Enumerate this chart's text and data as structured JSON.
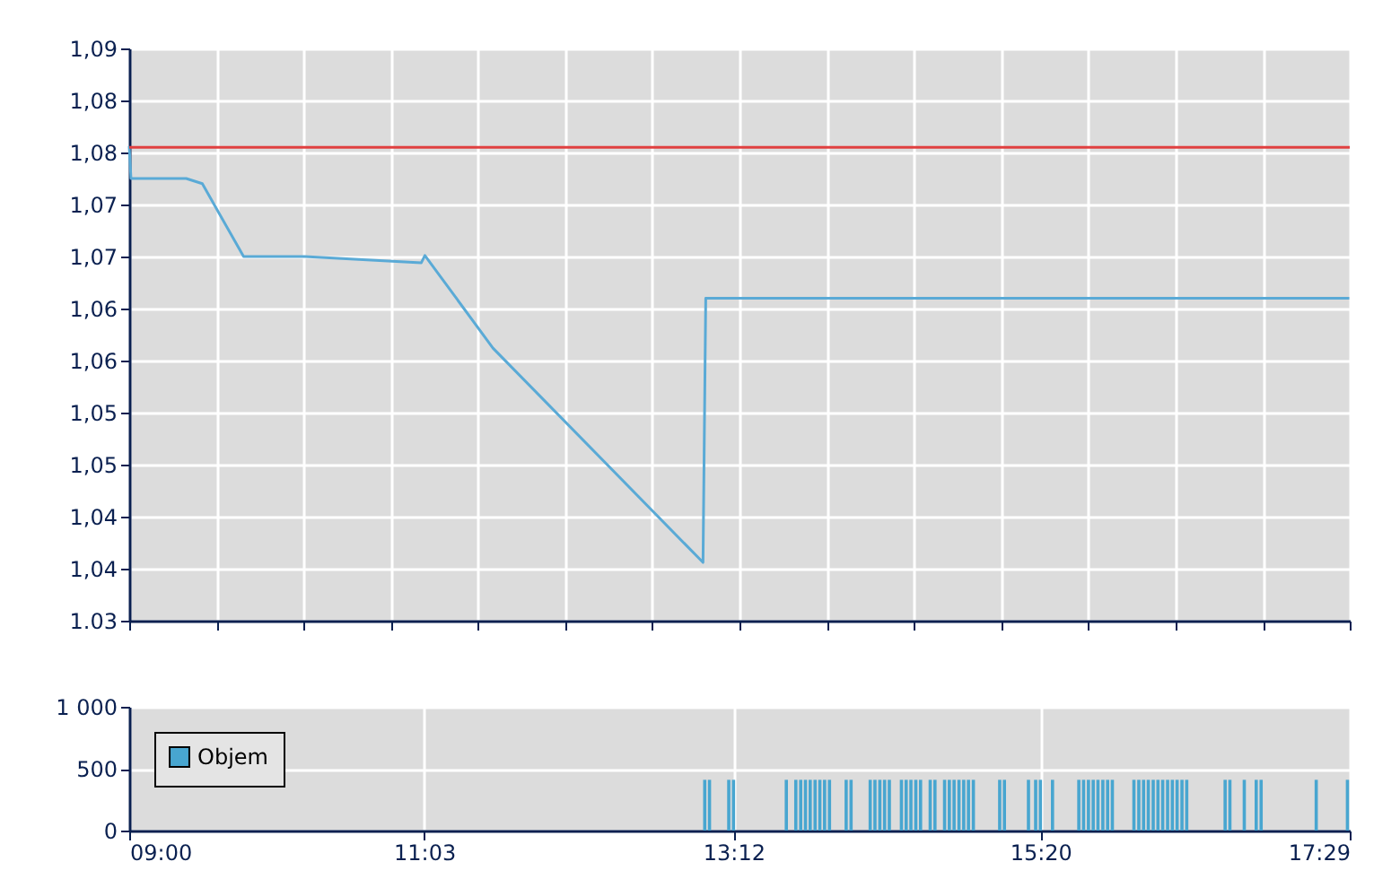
{
  "chart_data": [
    {
      "type": "line",
      "x": [
        9.0,
        9.012,
        9.396,
        9.508,
        9.795,
        10.219,
        11.03,
        11.055,
        11.528,
        12.988,
        13.007,
        17.48
      ],
      "series": [
        {
          "color": "#5aaad6",
          "values": [
            1.0756,
            1.0725,
            1.0725,
            1.072,
            1.065,
            1.065,
            1.0644,
            1.0651,
            1.0562,
            1.0356,
            1.061,
            1.061
          ]
        }
      ],
      "ylim": [
        1.03,
        1.085
      ],
      "yticks": [
        1.03,
        {
          "value": 1.035,
          "label": "1,04"
        },
        {
          "value": 1.04,
          "label": "1,04"
        },
        {
          "value": 1.045,
          "label": "1,05"
        },
        {
          "value": 1.05,
          "label": "1,05"
        },
        {
          "value": 1.055,
          "label": "1,06"
        },
        {
          "value": 1.06,
          "label": "1,06"
        },
        {
          "value": 1.065,
          "label": "1,07"
        },
        {
          "value": 1.07,
          "label": "1,07"
        },
        {
          "value": 1.075,
          "label": "1,08"
        },
        {
          "value": 1.08,
          "label": "1,08"
        },
        {
          "value": 1.085,
          "label": "1,09"
        }
      ],
      "xlim": [
        9.0,
        17.483
      ],
      "xticks": [
        {
          "value": 9.0,
          "label": null
        },
        {
          "value": 9.606,
          "label": null
        },
        {
          "value": 10.212,
          "label": null
        },
        {
          "value": 10.818,
          "label": null
        },
        {
          "value": 11.424,
          "label": null
        },
        {
          "value": 12.03,
          "label": null
        },
        {
          "value": 12.636,
          "label": null
        },
        {
          "value": 13.242,
          "label": null
        },
        {
          "value": 13.848,
          "label": null
        },
        {
          "value": 14.454,
          "label": null
        },
        {
          "value": 15.06,
          "label": null
        },
        {
          "value": 15.666,
          "label": null
        },
        {
          "value": 16.272,
          "label": null
        },
        {
          "value": 16.878,
          "label": null
        },
        {
          "value": 17.483,
          "label": null
        }
      ],
      "ref_lines": [
        {
          "axis": "y",
          "value": 1.0755,
          "color": "#e04040"
        }
      ],
      "tick_labels": "y",
      "grid": true,
      "marker": "none",
      "line_style": "solid"
    },
    {
      "type": "bar",
      "x": [
        13.0,
        13.033,
        13.167,
        13.2,
        13.567,
        13.633,
        13.667,
        13.7,
        13.733,
        13.767,
        13.8,
        13.833,
        13.867,
        13.983,
        14.017,
        14.15,
        14.183,
        14.217,
        14.25,
        14.283,
        14.367,
        14.4,
        14.433,
        14.467,
        14.5,
        14.567,
        14.6,
        14.667,
        14.7,
        14.733,
        14.767,
        14.8,
        14.833,
        14.867,
        15.05,
        15.083,
        15.25,
        15.3,
        15.333,
        15.417,
        15.6,
        15.633,
        15.667,
        15.7,
        15.733,
        15.767,
        15.8,
        15.833,
        15.983,
        16.017,
        16.05,
        16.083,
        16.117,
        16.15,
        16.183,
        16.217,
        16.25,
        16.283,
        16.317,
        16.35,
        16.617,
        16.65,
        16.75,
        16.833,
        16.867,
        17.25,
        17.467
      ],
      "series": [
        {
          "name": "Objem",
          "color": "#48a6d0",
          "values": [
            410,
            410,
            410,
            410,
            410,
            410,
            410,
            410,
            410,
            410,
            410,
            410,
            410,
            410,
            410,
            410,
            410,
            410,
            410,
            410,
            410,
            410,
            410,
            410,
            410,
            410,
            410,
            410,
            410,
            410,
            410,
            410,
            410,
            410,
            410,
            410,
            410,
            410,
            410,
            410,
            410,
            410,
            410,
            410,
            410,
            410,
            410,
            410,
            410,
            410,
            410,
            410,
            410,
            410,
            410,
            410,
            410,
            410,
            410,
            410,
            410,
            410,
            410,
            410,
            410,
            410,
            410
          ]
        }
      ],
      "ylim": [
        0,
        1000
      ],
      "yticks": [
        0,
        500,
        {
          "value": 1000,
          "label": "1 000"
        }
      ],
      "xlim": [
        9.0,
        17.483
      ],
      "xticks": [
        {
          "value": 9.0,
          "label": "09:00"
        },
        {
          "value": 11.05,
          "label": "11:03"
        },
        {
          "value": 13.2,
          "label": "13:12"
        },
        {
          "value": 15.333,
          "label": "15:20"
        },
        {
          "value": 17.483,
          "label": "17:29"
        }
      ],
      "grid": true,
      "legend": "top left"
    }
  ]
}
